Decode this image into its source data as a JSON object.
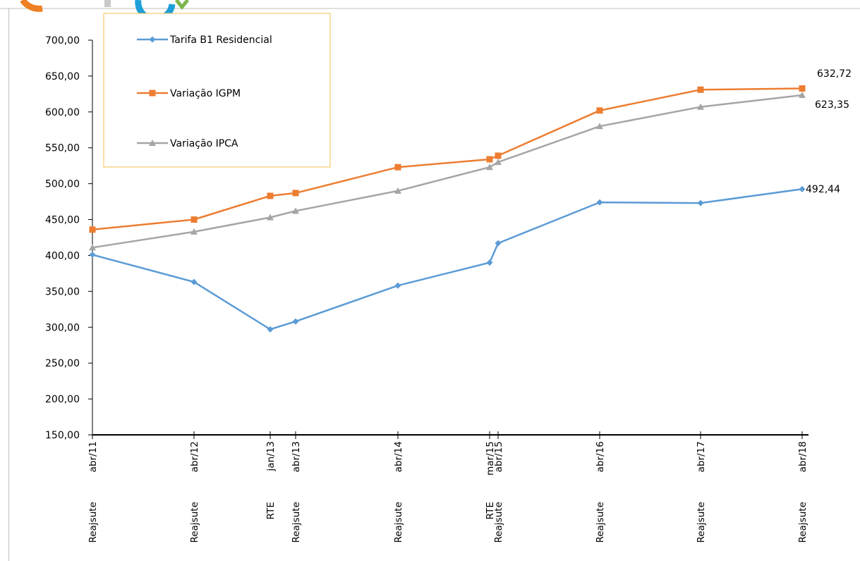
{
  "chart_data": {
    "type": "line",
    "title": "",
    "xlabel": "",
    "ylabel": "",
    "ylim": [
      150,
      700
    ],
    "yticks": [
      "700,00",
      "650,00",
      "600,00",
      "550,00",
      "500,00",
      "450,00",
      "400,00",
      "350,00",
      "300,00",
      "250,00",
      "200,00",
      "150,00"
    ],
    "grid": false,
    "legend": "top-left",
    "categories": [
      {
        "event": "Reajsute",
        "date": "abr/11"
      },
      {
        "event": "Reajsute",
        "date": "abr/12"
      },
      {
        "event": "RTE",
        "date": "jan/13"
      },
      {
        "event": "Reajsute",
        "date": "abr/13"
      },
      {
        "event": "Reajsute",
        "date": "abr/14"
      },
      {
        "event": "RTE",
        "date": "mar/15"
      },
      {
        "event": "Reajsute",
        "date": "abr/15"
      },
      {
        "event": "Reajsute",
        "date": "abr/16"
      },
      {
        "event": "Reajsute",
        "date": "abr/17"
      },
      {
        "event": "Reajsute",
        "date": "abr/18"
      }
    ],
    "series": [
      {
        "name": "Tarifa B1 Residencial",
        "color": "#5b9bd5",
        "marker": "diamond",
        "values": [
          401,
          363,
          297,
          308,
          358,
          390,
          417,
          474,
          473,
          492.44
        ],
        "end_label": "492,44"
      },
      {
        "name": "Variação IGPM",
        "color": "#ed7d31",
        "marker": "square",
        "values": [
          436,
          450,
          483,
          487,
          523,
          534,
          539,
          602,
          631,
          632.72
        ],
        "end_label": "632,72"
      },
      {
        "name": "Variação IPCA",
        "color": "#a5a5a5",
        "marker": "triangle",
        "values": [
          411,
          433,
          453,
          462,
          490,
          523,
          530,
          580,
          607,
          623.35
        ],
        "end_label": "623,35"
      }
    ]
  }
}
